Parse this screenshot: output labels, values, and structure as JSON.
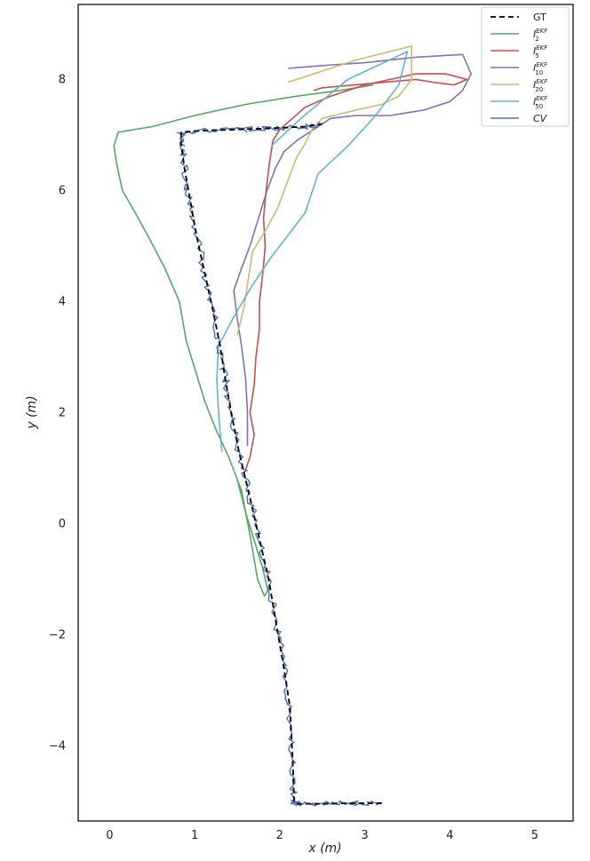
{
  "chart_data": {
    "type": "line",
    "xlabel": "x (m)",
    "ylabel": "y (m)",
    "xlim": [
      -0.37,
      5.45
    ],
    "ylim": [
      -5.35,
      9.35
    ],
    "x_ticks": [
      0,
      1,
      2,
      3,
      4,
      5
    ],
    "y_ticks": [
      -4,
      -2,
      0,
      2,
      4,
      6,
      8
    ],
    "tick_labels_x": [
      "0",
      "1",
      "2",
      "3",
      "4",
      "5"
    ],
    "tick_labels_y": [
      "−4",
      "−2",
      "0",
      "2",
      "4",
      "6",
      "8"
    ],
    "grid": false,
    "legend_position": "top-right",
    "series": [
      {
        "name": "GT",
        "legend_base": "GT",
        "legend_sup": "",
        "legend_sub": "",
        "color": "#000000",
        "dash": "6,4",
        "width": 1.8,
        "points": [
          [
            3.2,
            -5.03
          ],
          [
            2.85,
            -5.03
          ],
          [
            2.5,
            -5.04
          ],
          [
            2.2,
            -5.04
          ],
          [
            2.17,
            -5.02
          ],
          [
            2.15,
            -4.2
          ],
          [
            2.12,
            -3.3
          ],
          [
            2.05,
            -2.6
          ],
          [
            1.97,
            -1.9
          ],
          [
            1.87,
            -1.0
          ],
          [
            1.75,
            -0.2
          ],
          [
            1.63,
            0.6
          ],
          [
            1.52,
            1.3
          ],
          [
            1.43,
            2.0
          ],
          [
            1.36,
            2.6
          ],
          [
            1.3,
            3.2
          ],
          [
            1.22,
            3.8
          ],
          [
            1.12,
            4.5
          ],
          [
            1.02,
            5.2
          ],
          [
            0.95,
            5.8
          ],
          [
            0.88,
            6.4
          ],
          [
            0.84,
            6.85
          ],
          [
            0.84,
            7.05
          ],
          [
            1.1,
            7.08
          ],
          [
            1.5,
            7.1
          ],
          [
            1.9,
            7.12
          ],
          [
            2.3,
            7.15
          ],
          [
            2.5,
            7.2
          ]
        ]
      },
      {
        "name": "I_2^EKF",
        "legend_base": "I",
        "legend_sup": "EKF",
        "legend_sub": "2",
        "color": "#55a868",
        "dash": "",
        "width": 1.6,
        "points": [
          [
            1.5,
            0.8
          ],
          [
            1.6,
            0.2
          ],
          [
            1.7,
            -0.3
          ],
          [
            1.8,
            -0.8
          ],
          [
            1.86,
            -1.2
          ],
          [
            1.82,
            -1.3
          ],
          [
            1.74,
            -1.0
          ],
          [
            1.65,
            -0.2
          ],
          [
            1.55,
            0.6
          ],
          [
            1.4,
            1.2
          ],
          [
            1.25,
            1.7
          ],
          [
            1.12,
            2.2
          ],
          [
            1.0,
            2.8
          ],
          [
            0.9,
            3.3
          ],
          [
            0.82,
            4.0
          ],
          [
            0.65,
            4.6
          ],
          [
            0.48,
            5.1
          ],
          [
            0.3,
            5.6
          ],
          [
            0.15,
            6.0
          ],
          [
            0.08,
            6.5
          ],
          [
            0.05,
            6.8
          ],
          [
            0.1,
            7.05
          ],
          [
            0.5,
            7.15
          ],
          [
            1.0,
            7.35
          ],
          [
            1.6,
            7.55
          ],
          [
            2.2,
            7.7
          ],
          [
            2.7,
            7.8
          ],
          [
            3.1,
            7.9
          ]
        ]
      },
      {
        "name": "I_5^EKF",
        "legend_base": "I",
        "legend_sup": "EKF",
        "legend_sub": "5",
        "color": "#c44e52",
        "dash": "",
        "width": 1.6,
        "points": [
          [
            1.58,
            0.9
          ],
          [
            1.65,
            1.2
          ],
          [
            1.7,
            1.6
          ],
          [
            1.65,
            2.0
          ],
          [
            1.7,
            2.5
          ],
          [
            1.72,
            3.0
          ],
          [
            1.76,
            3.5
          ],
          [
            1.76,
            4.0
          ],
          [
            1.8,
            4.5
          ],
          [
            1.83,
            5.0
          ],
          [
            1.81,
            5.5
          ],
          [
            1.84,
            6.0
          ],
          [
            1.88,
            6.5
          ],
          [
            1.92,
            6.9
          ],
          [
            2.0,
            7.1
          ],
          [
            2.15,
            7.3
          ],
          [
            2.3,
            7.5
          ],
          [
            2.45,
            7.6
          ],
          [
            2.6,
            7.7
          ],
          [
            2.8,
            7.8
          ],
          [
            2.9,
            7.85
          ],
          [
            3.0,
            7.9
          ],
          [
            3.3,
            8.0
          ],
          [
            3.6,
            8.1
          ],
          [
            3.95,
            8.1
          ],
          [
            4.2,
            8.0
          ],
          [
            4.05,
            7.9
          ],
          [
            3.8,
            7.95
          ],
          [
            3.6,
            8.0
          ],
          [
            2.5,
            7.85
          ],
          [
            2.4,
            7.8
          ]
        ]
      },
      {
        "name": "I_10^EKF",
        "legend_base": "I",
        "legend_sup": "EKF",
        "legend_sub": "10",
        "color": "#8172b2",
        "dash": "",
        "width": 1.6,
        "points": [
          [
            1.62,
            1.4
          ],
          [
            1.62,
            2.0
          ],
          [
            1.6,
            2.6
          ],
          [
            1.55,
            3.2
          ],
          [
            1.5,
            3.7
          ],
          [
            1.46,
            4.2
          ],
          [
            1.55,
            4.6
          ],
          [
            1.65,
            5.0
          ],
          [
            1.75,
            5.5
          ],
          [
            1.85,
            6.0
          ],
          [
            1.95,
            6.4
          ],
          [
            2.05,
            6.7
          ],
          [
            2.2,
            6.9
          ],
          [
            2.4,
            7.1
          ],
          [
            2.6,
            7.3
          ],
          [
            2.9,
            7.35
          ],
          [
            3.3,
            7.35
          ],
          [
            3.7,
            7.45
          ],
          [
            4.0,
            7.6
          ],
          [
            4.15,
            7.8
          ],
          [
            4.25,
            8.1
          ],
          [
            4.15,
            8.45
          ],
          [
            3.6,
            8.4
          ],
          [
            3.0,
            8.3
          ],
          [
            2.5,
            8.25
          ],
          [
            2.1,
            8.2
          ]
        ]
      },
      {
        "name": "I_20^EKF",
        "legend_base": "I",
        "legend_sup": "EKF",
        "legend_sub": "20",
        "color": "#ccb974",
        "dash": "",
        "width": 1.6,
        "points": [
          [
            1.5,
            3.4
          ],
          [
            1.58,
            3.9
          ],
          [
            1.64,
            4.5
          ],
          [
            1.68,
            4.9
          ],
          [
            1.84,
            5.3
          ],
          [
            1.98,
            5.7
          ],
          [
            2.1,
            6.2
          ],
          [
            2.2,
            6.6
          ],
          [
            2.3,
            6.85
          ],
          [
            2.38,
            7.1
          ],
          [
            2.5,
            7.3
          ],
          [
            2.9,
            7.45
          ],
          [
            3.2,
            7.55
          ],
          [
            3.4,
            7.7
          ],
          [
            3.55,
            8.0
          ],
          [
            3.55,
            8.6
          ],
          [
            2.9,
            8.35
          ],
          [
            2.1,
            7.95
          ]
        ]
      },
      {
        "name": "I_50^EKF",
        "legend_base": "I",
        "legend_sup": "EKF",
        "legend_sub": "50",
        "color": "#64b5cd",
        "dash": "",
        "width": 1.6,
        "points": [
          [
            1.32,
            1.3
          ],
          [
            1.28,
            2.0
          ],
          [
            1.26,
            2.6
          ],
          [
            1.28,
            3.2
          ],
          [
            1.45,
            3.7
          ],
          [
            1.68,
            4.3
          ],
          [
            1.9,
            4.8
          ],
          [
            2.1,
            5.2
          ],
          [
            2.3,
            5.6
          ],
          [
            2.45,
            6.3
          ],
          [
            2.8,
            6.8
          ],
          [
            3.1,
            7.3
          ],
          [
            3.4,
            7.9
          ],
          [
            3.5,
            8.5
          ],
          [
            2.8,
            8.0
          ],
          [
            2.25,
            7.3
          ],
          [
            1.9,
            6.8
          ]
        ]
      },
      {
        "name": "CV",
        "legend_base": "CV",
        "legend_sup": "",
        "legend_sub": "",
        "color": "#4c72b0",
        "dash": "",
        "width": 1.4,
        "noisy": true,
        "points": [
          [
            3.2,
            -5.03
          ],
          [
            2.85,
            -5.03
          ],
          [
            2.5,
            -5.04
          ],
          [
            2.2,
            -5.04
          ],
          [
            2.17,
            -5.02
          ],
          [
            2.15,
            -4.2
          ],
          [
            2.12,
            -3.3
          ],
          [
            2.05,
            -2.6
          ],
          [
            1.97,
            -1.9
          ],
          [
            1.87,
            -1.0
          ],
          [
            1.75,
            -0.2
          ],
          [
            1.63,
            0.6
          ],
          [
            1.52,
            1.3
          ],
          [
            1.43,
            2.0
          ],
          [
            1.36,
            2.6
          ],
          [
            1.3,
            3.2
          ],
          [
            1.22,
            3.8
          ],
          [
            1.12,
            4.5
          ],
          [
            1.02,
            5.2
          ],
          [
            0.95,
            5.8
          ],
          [
            0.88,
            6.4
          ],
          [
            0.84,
            6.85
          ],
          [
            0.84,
            7.05
          ],
          [
            1.1,
            7.08
          ],
          [
            1.5,
            7.1
          ],
          [
            1.9,
            7.12
          ],
          [
            2.3,
            7.15
          ],
          [
            2.5,
            7.2
          ]
        ]
      }
    ]
  }
}
